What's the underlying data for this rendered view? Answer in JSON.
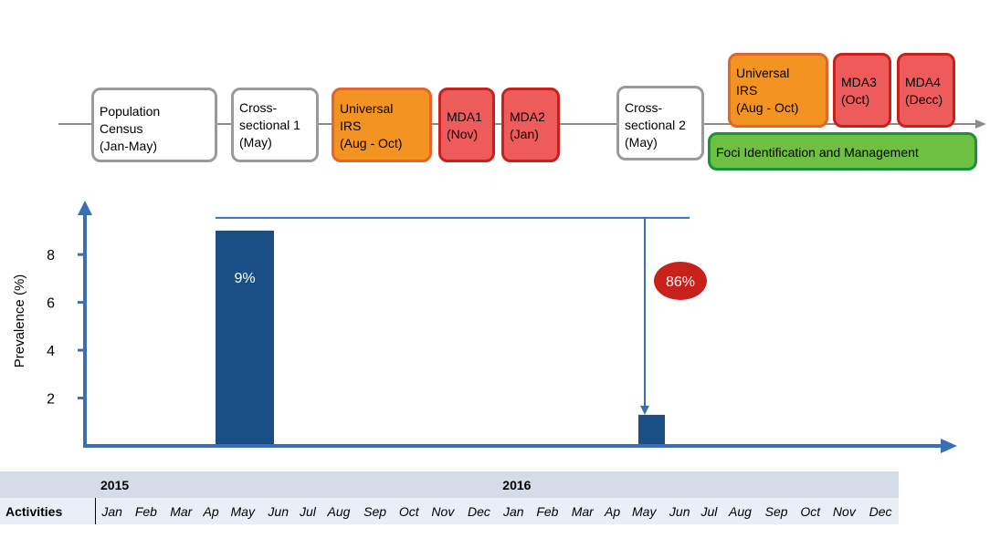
{
  "timeline": {
    "boxes": [
      {
        "id": "census",
        "style": "grey",
        "text": "Population\nCensus\n(Jan-May)"
      },
      {
        "id": "cs1",
        "style": "grey",
        "text": "Cross-\nsectional 1\n(May)"
      },
      {
        "id": "irs1",
        "style": "orange",
        "text": "Universal\nIRS\n(Aug - Oct)"
      },
      {
        "id": "mda1",
        "style": "red",
        "text": "MDA1\n(Nov)"
      },
      {
        "id": "mda2",
        "style": "red",
        "text": "MDA2\n(Jan)"
      },
      {
        "id": "cs2",
        "style": "grey",
        "text": "Cross-\nsectional 2\n(May)"
      },
      {
        "id": "irs2",
        "style": "orange",
        "text": "Universal\nIRS\n(Aug - Oct)"
      },
      {
        "id": "mda3",
        "style": "red",
        "text": "MDA3\n(Oct)"
      },
      {
        "id": "mda4",
        "style": "red",
        "text": "MDA4\n(Decc)"
      },
      {
        "id": "foci",
        "style": "green",
        "text": "Foci Identification and Management"
      }
    ]
  },
  "chart_data": {
    "type": "bar",
    "ylabel": "Prevalence (%)",
    "yticks": [
      2,
      4,
      6,
      8
    ],
    "ylim": [
      0,
      9.3
    ],
    "bars": [
      {
        "period": "May 2015",
        "value": 9.0,
        "label": "9%"
      },
      {
        "period": "May 2016",
        "value": 1.3,
        "label": ""
      }
    ],
    "annotation": {
      "text": "86%",
      "color": "#c8211b"
    },
    "colors": {
      "bar": "#1a4f86",
      "axis": "#3a6fb4"
    }
  },
  "table": {
    "years": [
      "2015",
      "2016"
    ],
    "activities_label": "Activities",
    "months": [
      "Jan",
      "Feb",
      "Mar",
      "Ap",
      "May",
      "Jun",
      "Jul",
      "Aug",
      "Sep",
      "Oct",
      "Nov",
      "Dec",
      "Jan",
      "Feb",
      "Mar",
      "Ap",
      "May",
      "Jun",
      "Jul",
      "Aug",
      "Sep",
      "Oct",
      "Nov",
      "Dec"
    ]
  }
}
